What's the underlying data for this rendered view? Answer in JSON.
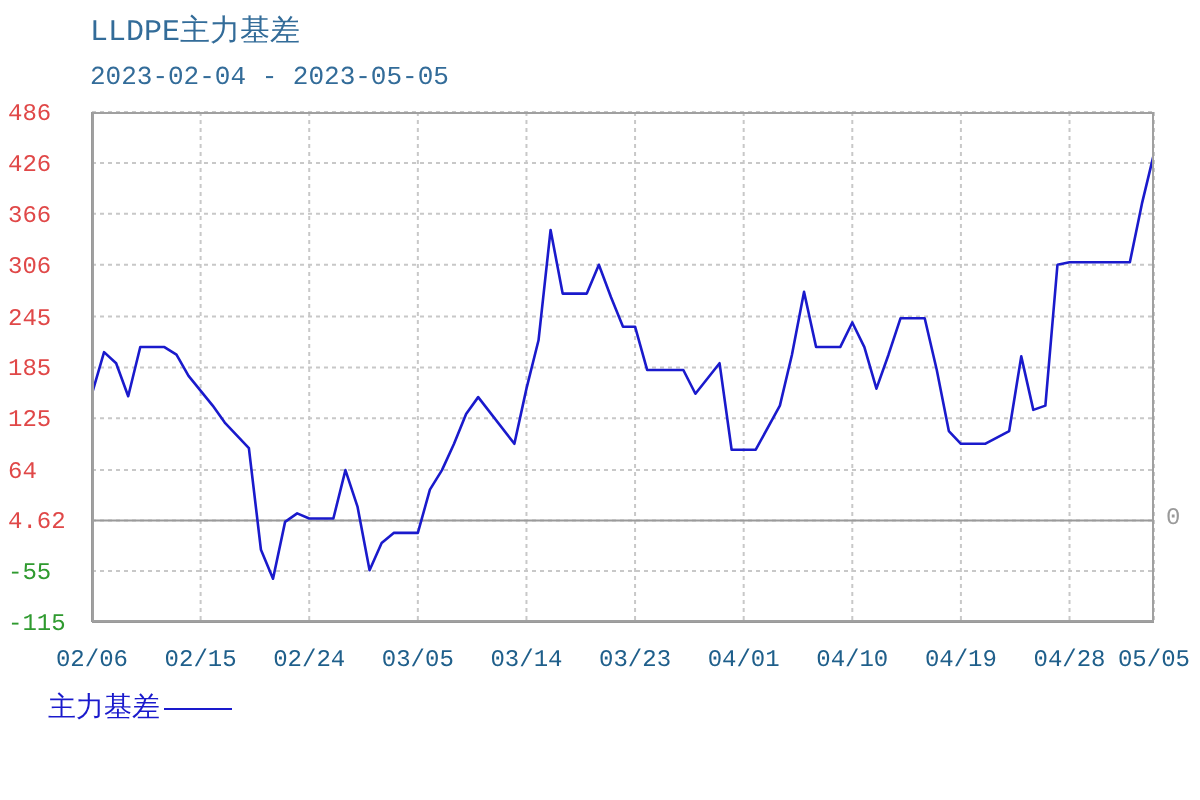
{
  "chart_data": {
    "type": "line",
    "title": "LLDPE主力基差",
    "subtitle": "2023-02-04 - 2023-05-05",
    "x": [
      "2023-02-06",
      "2023-02-07",
      "2023-02-08",
      "2023-02-09",
      "2023-02-10",
      "2023-02-12",
      "2023-02-13",
      "2023-02-14",
      "2023-02-16",
      "2023-02-17",
      "2023-02-19",
      "2023-02-20",
      "2023-02-21",
      "2023-02-22",
      "2023-02-23",
      "2023-02-24",
      "2023-02-26",
      "2023-02-27",
      "2023-02-28",
      "2023-03-01",
      "2023-03-02",
      "2023-03-03",
      "2023-03-05",
      "2023-03-06",
      "2023-03-07",
      "2023-03-08",
      "2023-03-09",
      "2023-03-10",
      "2023-03-13",
      "2023-03-14",
      "2023-03-15",
      "2023-03-16",
      "2023-03-17",
      "2023-03-19",
      "2023-03-20",
      "2023-03-21",
      "2023-03-22",
      "2023-03-23",
      "2023-03-24",
      "2023-03-27",
      "2023-03-28",
      "2023-03-30",
      "2023-03-31",
      "2023-04-02",
      "2023-04-04",
      "2023-04-05",
      "2023-04-06",
      "2023-04-07",
      "2023-04-09",
      "2023-04-10",
      "2023-04-11",
      "2023-04-12",
      "2023-04-13",
      "2023-04-14",
      "2023-04-16",
      "2023-04-17",
      "2023-04-18",
      "2023-04-19",
      "2023-04-21",
      "2023-04-23",
      "2023-04-24",
      "2023-04-25",
      "2023-04-26",
      "2023-04-27",
      "2023-04-28",
      "2023-05-03",
      "2023-05-04",
      "2023-05-05"
    ],
    "series": [
      {
        "name": "主力基差",
        "color": "#1a1acc",
        "values": [
          154,
          203,
          190,
          151,
          209,
          209,
          200,
          175,
          140,
          120,
          90,
          -30,
          -64,
          3,
          13,
          7,
          7,
          64,
          21,
          -54,
          -22,
          -10,
          -10,
          41,
          64,
          95,
          130,
          150,
          95,
          160,
          217,
          347,
          272,
          272,
          306,
          268,
          233,
          233,
          182,
          182,
          154,
          190,
          88,
          88,
          140,
          200,
          274,
          209,
          209,
          238,
          209,
          160,
          200,
          243,
          243,
          182,
          110,
          95,
          95,
          110,
          198,
          135,
          140,
          306,
          309,
          309,
          378,
          437
        ]
      }
    ],
    "xlim": [
      "2023-02-06",
      "2023-05-05"
    ],
    "xticks": [
      {
        "value": "2023-02-06",
        "label": "02/06"
      },
      {
        "value": "2023-02-15",
        "label": "02/15"
      },
      {
        "value": "2023-02-24",
        "label": "02/24"
      },
      {
        "value": "2023-03-05",
        "label": "03/05"
      },
      {
        "value": "2023-03-14",
        "label": "03/14"
      },
      {
        "value": "2023-03-23",
        "label": "03/23"
      },
      {
        "value": "2023-04-01",
        "label": "04/01"
      },
      {
        "value": "2023-04-10",
        "label": "04/10"
      },
      {
        "value": "2023-04-19",
        "label": "04/19"
      },
      {
        "value": "2023-04-28",
        "label": "04/28"
      },
      {
        "value": "2023-05-05",
        "label": "05/05"
      }
    ],
    "ylim": [
      -115,
      486
    ],
    "yticks": [
      -115,
      -55,
      4.62,
      64,
      125,
      185,
      245,
      306,
      366,
      426,
      486
    ],
    "ref_lines": [
      {
        "axis": "y",
        "value": 4.62,
        "color": "#9a9a9a"
      }
    ],
    "annotations": [
      "0"
    ],
    "grid": true,
    "legend": "bottom left",
    "marker": "none",
    "line_style": "solid"
  }
}
